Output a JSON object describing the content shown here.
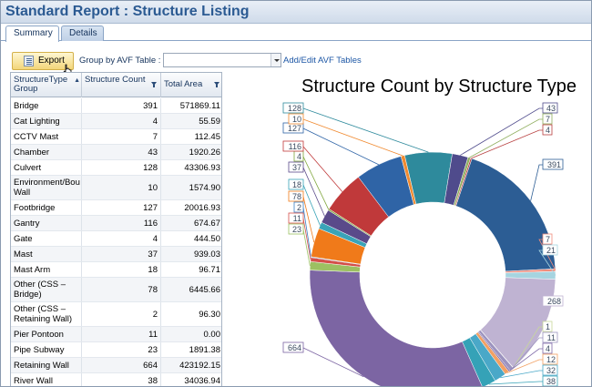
{
  "window": {
    "title": "Standard Report : Structure Listing"
  },
  "tabs": [
    {
      "label": "Summary",
      "active": true
    },
    {
      "label": "Details",
      "active": false
    }
  ],
  "toolbar": {
    "export_label": "Export",
    "group_by_label": "Group by AVF Table :",
    "group_by_value": "",
    "add_edit_link": "Add/Edit AVF Tables"
  },
  "grid": {
    "columns": [
      "StructureType Group",
      "Structure Count",
      "Total Area"
    ],
    "rows": [
      {
        "group": "Bridge",
        "count": "391",
        "area": "571869.11"
      },
      {
        "group": "Cat Lighting",
        "count": "4",
        "area": "55.59"
      },
      {
        "group": "CCTV Mast",
        "count": "7",
        "area": "112.45"
      },
      {
        "group": "Chamber",
        "count": "43",
        "area": "1920.26"
      },
      {
        "group": "Culvert",
        "count": "128",
        "area": "43306.93"
      },
      {
        "group": "Environment/Bou Wall",
        "count": "10",
        "area": "1574.90"
      },
      {
        "group": "Footbridge",
        "count": "127",
        "area": "20016.93"
      },
      {
        "group": "Gantry",
        "count": "116",
        "area": "674.67"
      },
      {
        "group": "Gate",
        "count": "4",
        "area": "444.50"
      },
      {
        "group": "Mast",
        "count": "37",
        "area": "939.03"
      },
      {
        "group": "Mast Arm",
        "count": "18",
        "area": "96.71"
      },
      {
        "group": "Other (CSS – Bridge)",
        "count": "78",
        "area": "6445.66"
      },
      {
        "group": "Other (CSS – Retaining Wall)",
        "count": "2",
        "area": "96.30"
      },
      {
        "group": "Pier Pontoon",
        "count": "11",
        "area": "0.00"
      },
      {
        "group": "Pipe Subway",
        "count": "23",
        "area": "1891.38"
      },
      {
        "group": "Retaining Wall",
        "count": "664",
        "area": "423192.15"
      },
      {
        "group": "River Wall",
        "count": "38",
        "area": "34036.94"
      }
    ]
  },
  "chart_data": {
    "type": "pie",
    "title": "Structure Count by Structure Type",
    "slices": [
      {
        "label": "128",
        "value": 128,
        "color": "#2e8a9c"
      },
      {
        "label": "43",
        "value": 43,
        "color": "#4f4b8c"
      },
      {
        "label": "7",
        "value": 7,
        "color": "#8fae5e"
      },
      {
        "label": "4",
        "value": 4,
        "color": "#b84040"
      },
      {
        "label": "391",
        "value": 391,
        "color": "#2c5d94"
      },
      {
        "label": "7",
        "value": 7,
        "color": "#f08c7c"
      },
      {
        "label": "21",
        "value": 21,
        "color": "#a6d4e0"
      },
      {
        "label": "268",
        "value": 268,
        "color": "#bfb3d2"
      },
      {
        "label": "1",
        "value": 1,
        "color": "#c8d89a"
      },
      {
        "label": "11",
        "value": 11,
        "color": "#9c93bf"
      },
      {
        "label": "4",
        "value": 4,
        "color": "#7f6aa8"
      },
      {
        "label": "12",
        "value": 12,
        "color": "#f2a063"
      },
      {
        "label": "32",
        "value": 32,
        "color": "#4aa8c8"
      },
      {
        "label": "38",
        "value": 38,
        "color": "#35a2b7"
      },
      {
        "label": "664",
        "value": 664,
        "color": "#7c65a3"
      },
      {
        "label": "23",
        "value": 23,
        "color": "#9cc062"
      },
      {
        "label": "11",
        "value": 11,
        "color": "#d4504a"
      },
      {
        "label": "2",
        "value": 2,
        "color": "#3c7fc4"
      },
      {
        "label": "78",
        "value": 78,
        "color": "#f07a1a"
      },
      {
        "label": "18",
        "value": 18,
        "color": "#3aa4b8"
      },
      {
        "label": "37",
        "value": 37,
        "color": "#5a4a8a"
      },
      {
        "label": "4",
        "value": 4,
        "color": "#7fa63c"
      },
      {
        "label": "116",
        "value": 116,
        "color": "#c0393a"
      },
      {
        "label": "127",
        "value": 127,
        "color": "#2f64a6"
      },
      {
        "label": "10",
        "value": 10,
        "color": "#f08a30"
      }
    ]
  }
}
